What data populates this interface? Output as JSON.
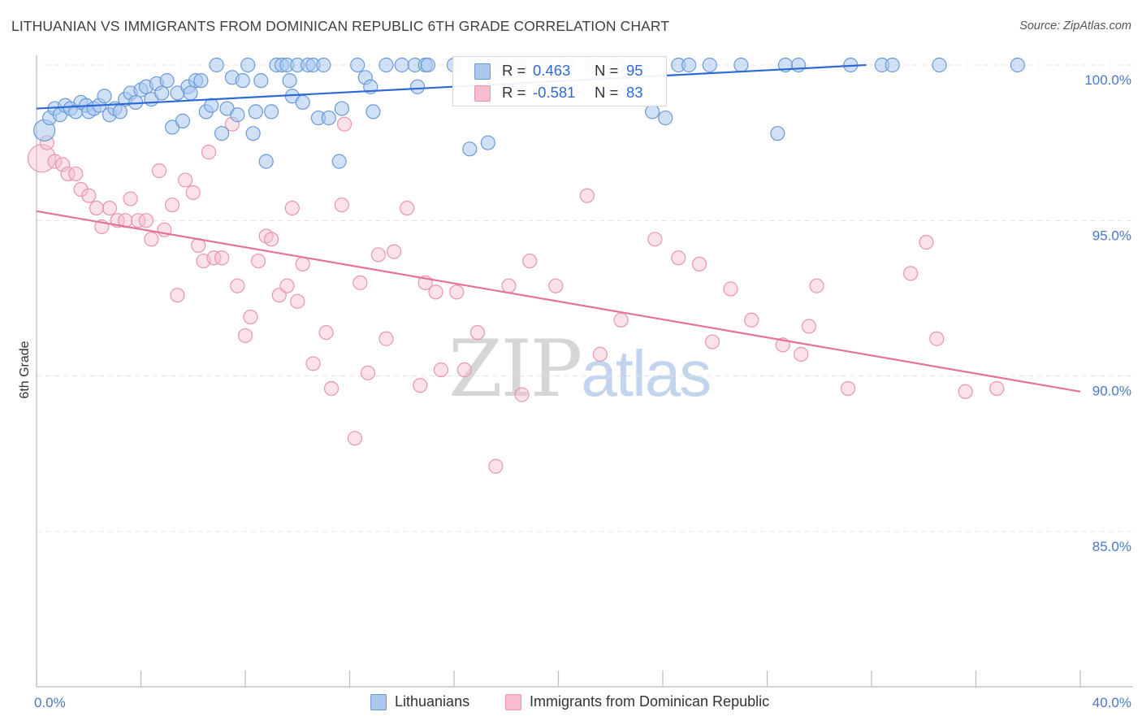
{
  "title": "LITHUANIAN VS IMMIGRANTS FROM DOMINICAN REPUBLIC 6TH GRADE CORRELATION CHART",
  "source": "Source: ZipAtlas.com",
  "watermark": {
    "zip": "ZIP",
    "atlas": "atlas"
  },
  "legend_top": {
    "rows": [
      {
        "r_label": "R =",
        "r_value": "0.463",
        "n_label": "N =",
        "n_value": "95"
      },
      {
        "r_label": "R =",
        "r_value": "-0.581",
        "n_label": "N =",
        "n_value": "83"
      }
    ]
  },
  "legend_bottom": {
    "items": [
      {
        "label": "Lithuanians"
      },
      {
        "label": "Immigrants from Dominican Republic"
      }
    ]
  },
  "colors": {
    "blue_fill": "#aac8ee",
    "blue_stroke": "#6b9ad8",
    "blue_line": "#2f6ad4",
    "pink_fill": "#f7bcd0",
    "pink_stroke": "#e995b2",
    "pink_line": "#e4729a",
    "grid": "#e3e3e3",
    "axis": "#bbbbbb",
    "tick_text": "#4a78c8"
  },
  "chart_data": {
    "type": "scatter",
    "title": "LITHUANIAN VS IMMIGRANTS FROM DOMINICAN REPUBLIC 6TH GRADE CORRELATION CHART",
    "xlabel": "",
    "ylabel": "6th Grade",
    "xlim": [
      0,
      40
    ],
    "ylim": [
      80.5,
      100.8
    ],
    "y_ticks": [
      85,
      90,
      95,
      100
    ],
    "y_tick_labels": [
      "85.0%",
      "90.0%",
      "95.0%",
      "100.0%"
    ],
    "x_ticks": [
      0,
      4,
      8,
      12,
      16,
      20,
      24,
      28,
      32,
      36,
      40
    ],
    "x_tick_labels": [
      "0.0%",
      "40.0%"
    ],
    "series": [
      {
        "name": "Lithuanians",
        "R": 0.463,
        "N": 95,
        "trend": {
          "x": [
            0,
            31.8
          ],
          "y": [
            98.6,
            100.0
          ]
        },
        "points": [
          [
            0.3,
            97.9
          ],
          [
            0.5,
            98.3
          ],
          [
            0.7,
            98.6
          ],
          [
            0.9,
            98.4
          ],
          [
            1.1,
            98.7
          ],
          [
            1.3,
            98.6
          ],
          [
            1.5,
            98.5
          ],
          [
            1.7,
            98.8
          ],
          [
            1.9,
            98.7
          ],
          [
            2.0,
            98.5
          ],
          [
            2.2,
            98.6
          ],
          [
            2.4,
            98.7
          ],
          [
            2.6,
            99.0
          ],
          [
            2.8,
            98.4
          ],
          [
            3.0,
            98.6
          ],
          [
            3.2,
            98.5
          ],
          [
            3.4,
            98.9
          ],
          [
            3.6,
            99.1
          ],
          [
            3.8,
            98.8
          ],
          [
            4.0,
            99.2
          ],
          [
            4.2,
            99.3
          ],
          [
            4.4,
            98.9
          ],
          [
            4.6,
            99.4
          ],
          [
            4.8,
            99.1
          ],
          [
            5.0,
            99.5
          ],
          [
            5.2,
            98.0
          ],
          [
            5.4,
            99.1
          ],
          [
            5.6,
            98.2
          ],
          [
            5.8,
            99.3
          ],
          [
            5.9,
            99.1
          ],
          [
            6.1,
            99.5
          ],
          [
            6.3,
            99.5
          ],
          [
            6.5,
            98.5
          ],
          [
            6.7,
            98.7
          ],
          [
            6.9,
            100.0
          ],
          [
            7.1,
            97.8
          ],
          [
            7.3,
            98.6
          ],
          [
            7.5,
            99.6
          ],
          [
            7.7,
            98.4
          ],
          [
            7.9,
            99.5
          ],
          [
            8.1,
            100.0
          ],
          [
            8.3,
            97.8
          ],
          [
            8.4,
            98.5
          ],
          [
            8.6,
            99.5
          ],
          [
            8.8,
            96.9
          ],
          [
            9.0,
            98.5
          ],
          [
            9.2,
            100.0
          ],
          [
            9.4,
            100.0
          ],
          [
            9.6,
            100.0
          ],
          [
            9.7,
            99.5
          ],
          [
            9.8,
            99.0
          ],
          [
            10.0,
            100.0
          ],
          [
            10.2,
            98.8
          ],
          [
            10.4,
            100.0
          ],
          [
            10.6,
            100.0
          ],
          [
            10.8,
            98.3
          ],
          [
            11.0,
            100.0
          ],
          [
            11.2,
            98.3
          ],
          [
            11.6,
            96.9
          ],
          [
            11.7,
            98.6
          ],
          [
            12.3,
            100.0
          ],
          [
            12.6,
            99.6
          ],
          [
            12.8,
            99.3
          ],
          [
            12.9,
            98.5
          ],
          [
            13.4,
            100.0
          ],
          [
            14.0,
            100.0
          ],
          [
            14.5,
            100.0
          ],
          [
            14.6,
            99.3
          ],
          [
            14.9,
            100.0
          ],
          [
            15.0,
            100.0
          ],
          [
            16.0,
            100.0
          ],
          [
            16.6,
            97.3
          ],
          [
            16.8,
            100.0
          ],
          [
            17.3,
            97.5
          ],
          [
            17.8,
            100.0
          ],
          [
            18.5,
            100.0
          ],
          [
            19.5,
            100.0
          ],
          [
            20.3,
            100.0
          ],
          [
            21.3,
            100.0
          ],
          [
            22.3,
            100.0
          ],
          [
            23.0,
            100.0
          ],
          [
            23.6,
            98.5
          ],
          [
            24.1,
            98.3
          ],
          [
            24.6,
            100.0
          ],
          [
            25.0,
            100.0
          ],
          [
            25.8,
            100.0
          ],
          [
            27.0,
            100.0
          ],
          [
            28.4,
            97.8
          ],
          [
            28.7,
            100.0
          ],
          [
            29.2,
            100.0
          ],
          [
            31.2,
            100.0
          ],
          [
            32.4,
            100.0
          ],
          [
            32.8,
            100.0
          ],
          [
            34.6,
            100.0
          ],
          [
            37.6,
            100.0
          ]
        ]
      },
      {
        "name": "Immigrants from Dominican Republic",
        "R": -0.581,
        "N": 83,
        "trend": {
          "x": [
            0,
            40
          ],
          "y": [
            95.3,
            89.5
          ]
        },
        "points": [
          [
            0.2,
            97.0
          ],
          [
            0.4,
            97.5
          ],
          [
            0.7,
            96.9
          ],
          [
            1.0,
            96.8
          ],
          [
            1.2,
            96.5
          ],
          [
            1.5,
            96.5
          ],
          [
            1.7,
            96.0
          ],
          [
            2.0,
            95.8
          ],
          [
            2.3,
            95.4
          ],
          [
            2.5,
            94.8
          ],
          [
            2.8,
            95.4
          ],
          [
            3.1,
            95.0
          ],
          [
            3.4,
            95.0
          ],
          [
            3.6,
            95.7
          ],
          [
            3.9,
            95.0
          ],
          [
            4.2,
            95.0
          ],
          [
            4.4,
            94.4
          ],
          [
            4.7,
            96.6
          ],
          [
            4.9,
            94.7
          ],
          [
            5.2,
            95.5
          ],
          [
            5.4,
            92.6
          ],
          [
            5.7,
            96.3
          ],
          [
            6.0,
            95.9
          ],
          [
            6.2,
            94.2
          ],
          [
            6.4,
            93.7
          ],
          [
            6.6,
            97.2
          ],
          [
            6.8,
            93.8
          ],
          [
            7.1,
            93.8
          ],
          [
            7.5,
            98.1
          ],
          [
            7.7,
            92.9
          ],
          [
            8.0,
            91.3
          ],
          [
            8.2,
            91.9
          ],
          [
            8.5,
            93.7
          ],
          [
            8.8,
            94.5
          ],
          [
            9.0,
            94.4
          ],
          [
            9.3,
            92.6
          ],
          [
            9.6,
            92.9
          ],
          [
            9.8,
            95.4
          ],
          [
            10.0,
            92.4
          ],
          [
            10.2,
            93.6
          ],
          [
            10.6,
            90.4
          ],
          [
            11.1,
            91.4
          ],
          [
            11.3,
            89.6
          ],
          [
            11.7,
            95.5
          ],
          [
            11.8,
            98.1
          ],
          [
            12.2,
            88.0
          ],
          [
            12.4,
            93.0
          ],
          [
            12.7,
            90.1
          ],
          [
            13.1,
            93.9
          ],
          [
            13.4,
            91.2
          ],
          [
            13.7,
            94.0
          ],
          [
            14.2,
            95.4
          ],
          [
            14.7,
            89.7
          ],
          [
            14.9,
            93.0
          ],
          [
            15.3,
            92.7
          ],
          [
            15.5,
            90.2
          ],
          [
            16.1,
            92.7
          ],
          [
            16.4,
            90.2
          ],
          [
            16.9,
            91.4
          ],
          [
            17.6,
            87.1
          ],
          [
            18.1,
            92.9
          ],
          [
            18.6,
            89.4
          ],
          [
            18.9,
            93.7
          ],
          [
            19.9,
            92.9
          ],
          [
            21.1,
            95.8
          ],
          [
            21.6,
            90.7
          ],
          [
            22.4,
            91.8
          ],
          [
            23.7,
            94.4
          ],
          [
            24.6,
            93.8
          ],
          [
            25.4,
            93.6
          ],
          [
            25.9,
            91.1
          ],
          [
            26.6,
            92.8
          ],
          [
            27.4,
            91.8
          ],
          [
            28.6,
            91.0
          ],
          [
            29.3,
            90.7
          ],
          [
            29.9,
            92.9
          ],
          [
            29.6,
            91.6
          ],
          [
            31.1,
            89.6
          ],
          [
            33.5,
            93.3
          ],
          [
            34.1,
            94.3
          ],
          [
            34.5,
            91.2
          ],
          [
            35.6,
            89.5
          ],
          [
            36.8,
            89.6
          ]
        ]
      }
    ]
  }
}
